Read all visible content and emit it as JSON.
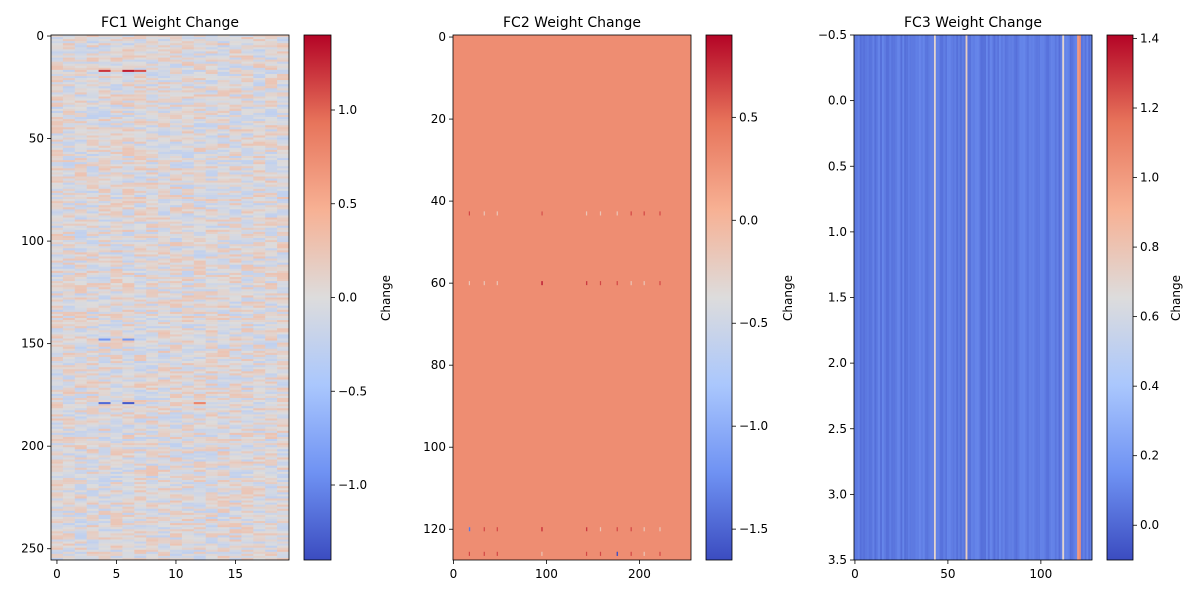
{
  "colormap": "coolwarm",
  "colormap_stops": [
    "#3b4cc0",
    "#6f92f3",
    "#aac7fd",
    "#dddcdc",
    "#f7b194",
    "#e7745b",
    "#b40426"
  ],
  "chart_data": [
    {
      "type": "heatmap",
      "title": "FC1 Weight Change",
      "rows": 256,
      "cols": 20,
      "xlim": [
        -0.5,
        19.5
      ],
      "ylim": [
        255.5,
        -0.5
      ],
      "xticks": [
        0,
        5,
        10,
        15
      ],
      "yticks": [
        0,
        50,
        100,
        150,
        200,
        250
      ],
      "colorbar": {
        "label": "Change",
        "range": [
          -1.4,
          1.4
        ],
        "ticks": [
          -1.0,
          -0.5,
          0.0,
          0.5,
          1.0
        ],
        "tick_labels": [
          "−1.0",
          "−0.5",
          "0.0",
          "0.5",
          "1.0"
        ]
      },
      "baseline_value": 0.0,
      "highlights": [
        {
          "row": 17,
          "col": 4,
          "value": 1.2
        },
        {
          "row": 17,
          "col": 6,
          "value": 1.3
        },
        {
          "row": 17,
          "col": 7,
          "value": 1.1
        },
        {
          "row": 148,
          "col": 4,
          "value": -0.9
        },
        {
          "row": 148,
          "col": 6,
          "value": -0.9
        },
        {
          "row": 179,
          "col": 4,
          "value": -1.2
        },
        {
          "row": 179,
          "col": 6,
          "value": -1.3
        },
        {
          "row": 179,
          "col": 12,
          "value": 0.8
        }
      ]
    },
    {
      "type": "heatmap",
      "title": "FC2 Weight Change",
      "rows": 128,
      "cols": 256,
      "xlim": [
        -0.5,
        255.5
      ],
      "ylim": [
        127.5,
        -0.5
      ],
      "xticks": [
        0,
        100,
        200
      ],
      "yticks": [
        0,
        20,
        40,
        60,
        80,
        100,
        120
      ],
      "colorbar": {
        "label": "Change",
        "range": [
          -1.65,
          0.9
        ],
        "ticks": [
          -1.5,
          -1.0,
          -0.5,
          0.0,
          0.5
        ],
        "tick_labels": [
          "−1.5",
          "−1.0",
          "−0.5",
          "0.0",
          "0.5"
        ]
      },
      "baseline_value": 0.3,
      "highlight_rows": [
        43,
        60,
        120,
        126
      ],
      "highlight_cols": [
        17,
        33,
        47,
        95,
        143,
        158,
        176,
        191,
        205,
        222
      ],
      "highlights": [
        {
          "row": 60,
          "col": 95,
          "value": 0.85
        },
        {
          "row": 43,
          "col": 95,
          "value": 0.6
        },
        {
          "row": 120,
          "col": 95,
          "value": 0.7
        },
        {
          "row": 60,
          "col": 143,
          "value": 0.7
        },
        {
          "row": 120,
          "col": 143,
          "value": 0.7
        },
        {
          "row": 126,
          "col": 176,
          "value": -1.6
        },
        {
          "row": 120,
          "col": 17,
          "value": -1.4
        }
      ]
    },
    {
      "type": "heatmap",
      "title": "FC3 Weight Change",
      "rows": 4,
      "cols": 128,
      "xlim": [
        -0.5,
        127.5
      ],
      "ylim": [
        3.5,
        -0.5
      ],
      "xticks": [
        0,
        50,
        100
      ],
      "yticks": [
        -0.5,
        0.0,
        0.5,
        1.0,
        1.5,
        2.0,
        2.5,
        3.0,
        3.5
      ],
      "ytick_labels": [
        "−0.5",
        "0.0",
        "0.5",
        "1.0",
        "1.5",
        "2.0",
        "2.5",
        "3.0",
        "3.5"
      ],
      "colorbar": {
        "label": "Change",
        "range": [
          -0.1,
          1.41
        ],
        "ticks": [
          0.0,
          0.2,
          0.4,
          0.6,
          0.8,
          1.0,
          1.2,
          1.4
        ],
        "tick_labels": [
          "0.0",
          "0.2",
          "0.4",
          "0.6",
          "0.8",
          "1.0",
          "1.2",
          "1.4"
        ]
      },
      "baseline_value": 0.05,
      "highlight_cols": [
        {
          "col": 43,
          "value": 0.7
        },
        {
          "col": 60,
          "value": 0.75
        },
        {
          "col": 112,
          "value": 0.7
        },
        {
          "col": 120,
          "value": 1.0
        },
        {
          "col": 121,
          "value": 1.05
        }
      ]
    }
  ]
}
